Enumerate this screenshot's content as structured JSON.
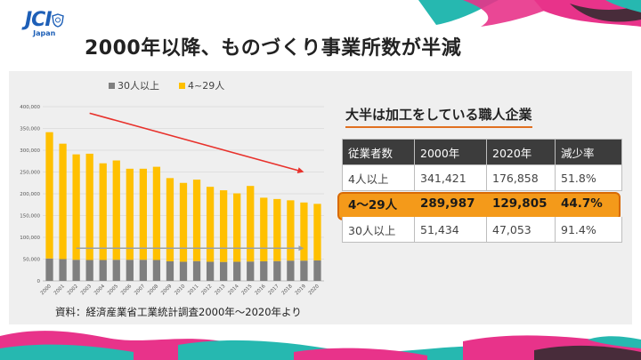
{
  "logo": {
    "text": "JCI",
    "sub": "Japan",
    "icon": "jci-emblem-icon"
  },
  "title": "2000年以降、ものづくり事業所数が半減",
  "source": "資料：経済産業省工業統計調査2000年～2020年より",
  "chart_data": {
    "type": "bar",
    "stacked": true,
    "legend": [
      "30人以上",
      "4~29人"
    ],
    "categories": [
      "2000",
      "2001",
      "2002",
      "2003",
      "2004",
      "2005",
      "2006",
      "2007",
      "2008",
      "2009",
      "2010",
      "2011",
      "2012",
      "2013",
      "2014",
      "2015",
      "2016",
      "2017",
      "2018",
      "2019",
      "2020"
    ],
    "series": [
      {
        "name": "30人以上",
        "color": "#7f7f7f",
        "values": [
          51434,
          50000,
          48500,
          48000,
          48000,
          48500,
          48500,
          48500,
          48000,
          45000,
          44000,
          45500,
          44000,
          43500,
          44000,
          44500,
          45000,
          45500,
          46500,
          46500,
          47053
        ]
      },
      {
        "name": "4~29人",
        "color": "#ffc000",
        "values": [
          289987,
          265000,
          242000,
          244000,
          222000,
          228000,
          209000,
          209000,
          214000,
          191000,
          181000,
          187000,
          172000,
          164500,
          157000,
          173500,
          146000,
          142500,
          138500,
          133500,
          129805
        ]
      }
    ],
    "yticks": [
      "0",
      "50,000",
      "100,000",
      "150,000",
      "200,000",
      "250,000",
      "300,000",
      "350,000",
      "400,000"
    ],
    "ylim": [
      0,
      400000
    ],
    "trend_arrow": {
      "from_year": "2003",
      "from_value": 385000,
      "to_year": "2019",
      "to_value": 250000,
      "color": "#e8312b"
    },
    "flat_arrow": {
      "from_year": "2002",
      "to_year": "2019",
      "value": 75000,
      "color": "#9aa0a6"
    }
  },
  "table": {
    "title": "大半は加工をしている職人企業",
    "headers": [
      "従業者数",
      "2000年",
      "2020年",
      "減少率"
    ],
    "rows": [
      [
        "4人以上",
        "341,421",
        "176,858",
        "51.8%"
      ],
      [
        "4～29人",
        "289,987",
        "129,805",
        "44.7%"
      ],
      [
        "30人以上",
        "51,434",
        "47,053",
        "91.4%"
      ]
    ]
  },
  "colors": {
    "title": "#222222",
    "logo": "#1d5fb7",
    "highlight": "#f49a1a",
    "accent_teal": "#26b8b0",
    "accent_pink": "#e8338a"
  }
}
